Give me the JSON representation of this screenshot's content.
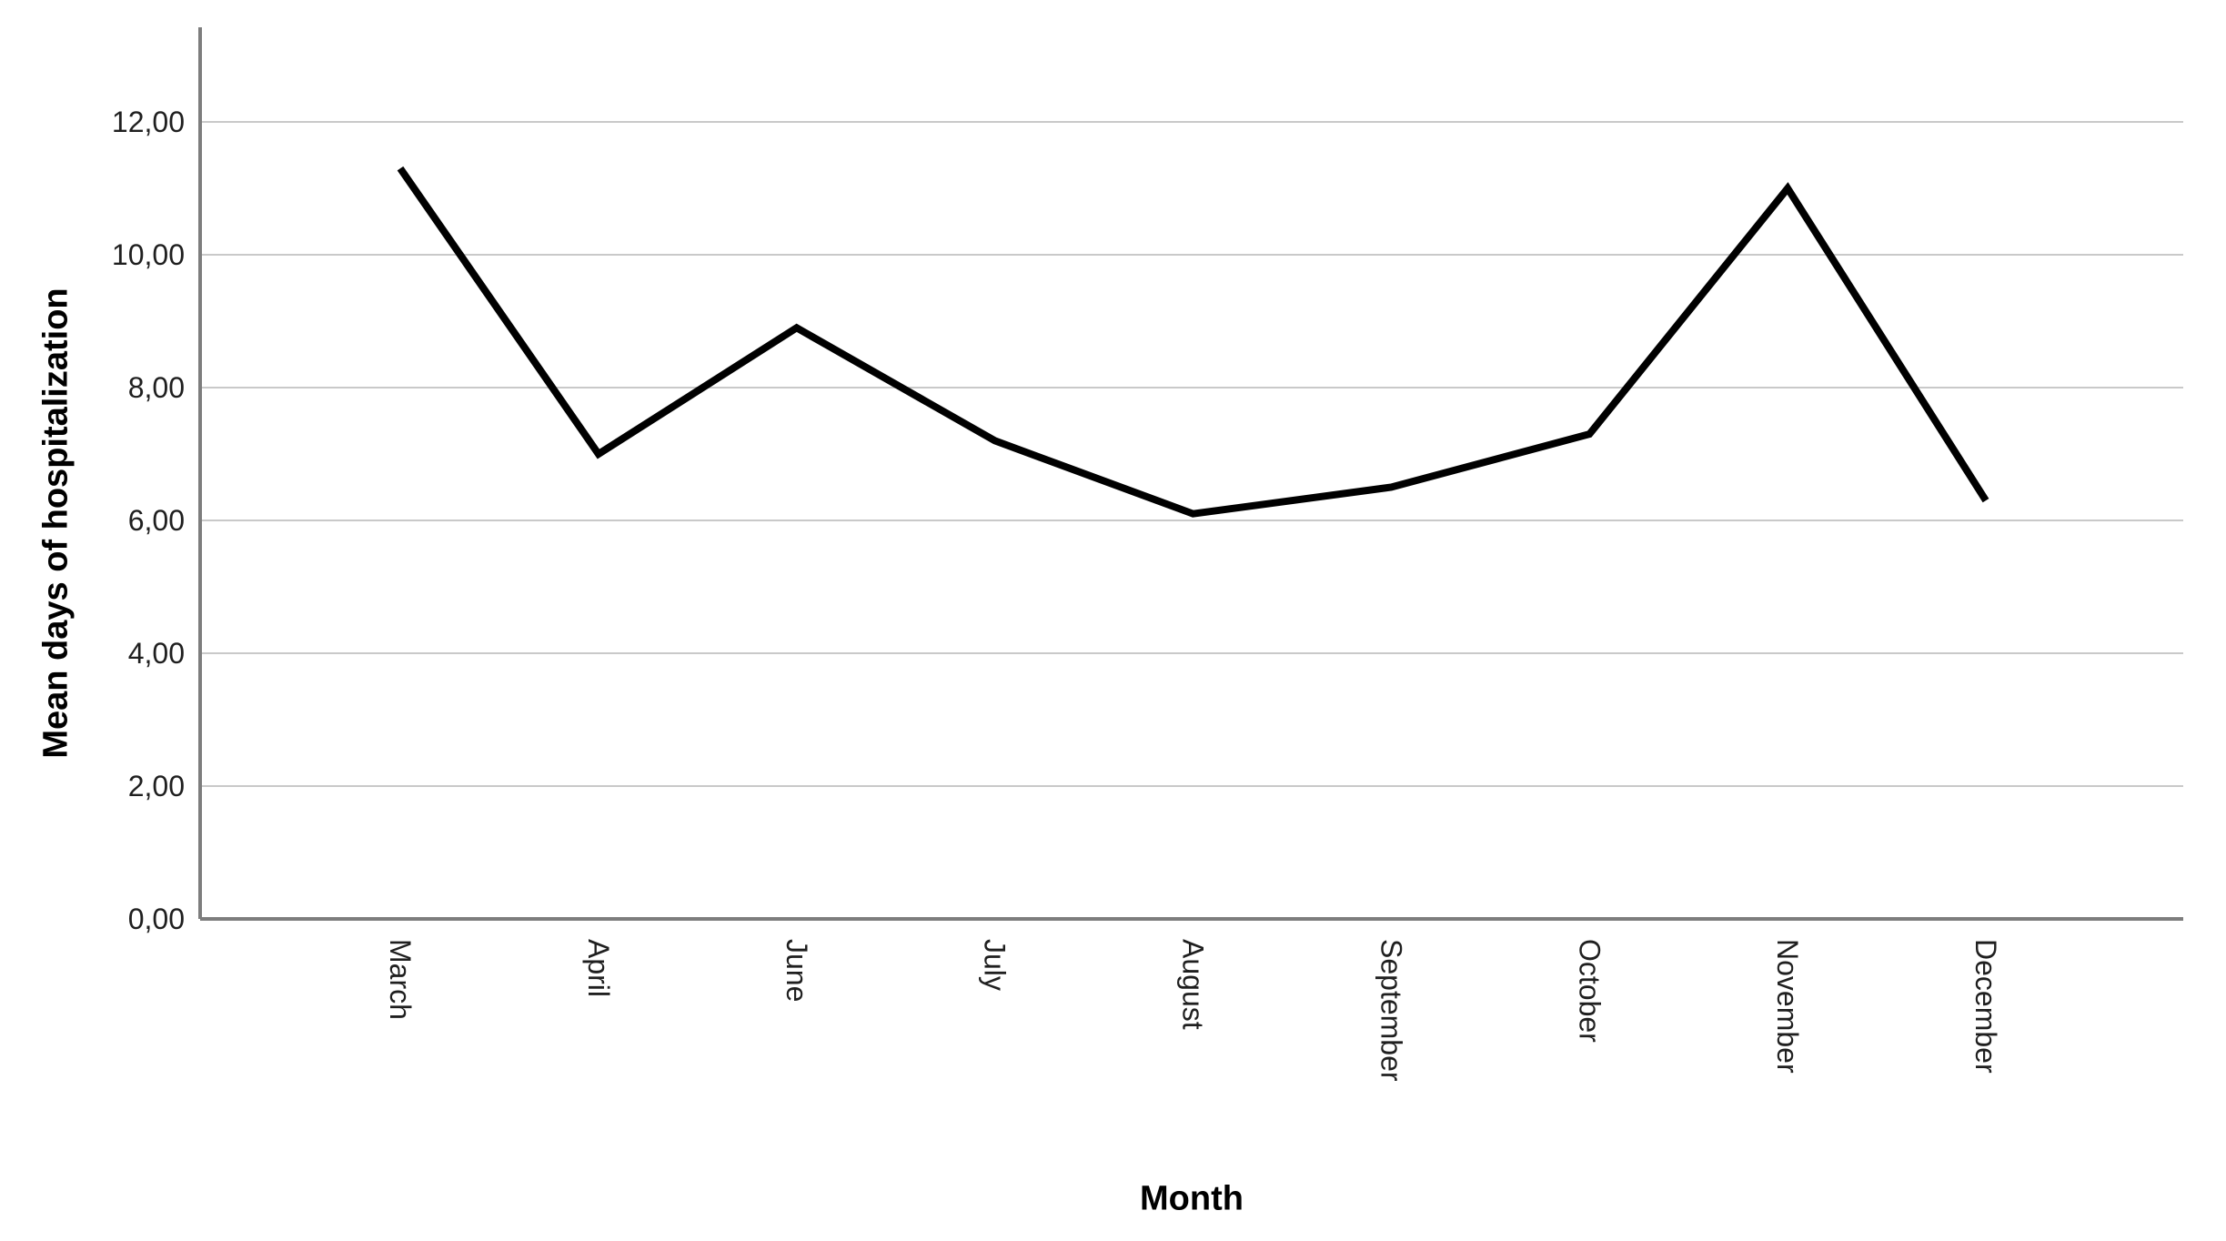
{
  "chart_data": {
    "type": "line",
    "title": "",
    "xlabel": "Month",
    "ylabel": "Mean days of hospitalization",
    "categories": [
      "March",
      "April",
      "June",
      "July",
      "August",
      "September",
      "October",
      "November",
      "December"
    ],
    "series": [
      {
        "name": "Mean days of hospitalization",
        "values": [
          11.3,
          7.0,
          8.9,
          7.2,
          6.1,
          6.5,
          7.3,
          11.0,
          6.3
        ]
      }
    ],
    "y_ticks": [
      {
        "value": 0,
        "label": "0,00"
      },
      {
        "value": 2,
        "label": "2,00"
      },
      {
        "value": 4,
        "label": "4,00"
      },
      {
        "value": 6,
        "label": "6,00"
      },
      {
        "value": 8,
        "label": "8,00"
      },
      {
        "value": 10,
        "label": "10,00"
      },
      {
        "value": 12,
        "label": "12,00"
      }
    ],
    "ylim": [
      0,
      13.4
    ],
    "grid": "horizontal-only",
    "legend_position": "none",
    "x_tick_label_rotation_deg": 90,
    "decimal_separator": ",",
    "colors": {
      "series_line": "#000000",
      "gridline": "#c9c9c9",
      "axis_line": "#7d7d7d",
      "tick_label": "#1f1f1f",
      "axis_title": "#000000",
      "background": "#ffffff"
    }
  }
}
